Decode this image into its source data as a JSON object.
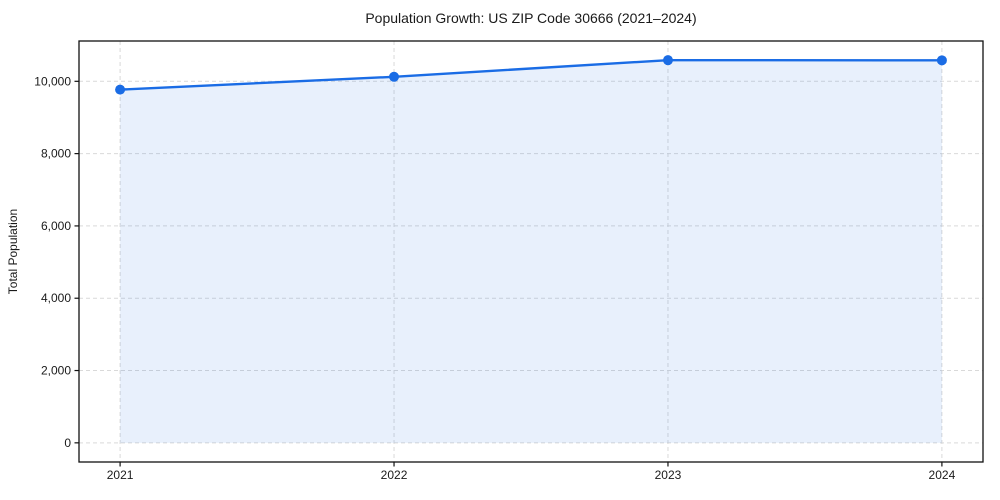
{
  "chart_data": {
    "type": "area",
    "title": "Population Growth: US ZIP Code 30666 (2021–2024)",
    "xlabel": "",
    "ylabel": "Total Population",
    "x": [
      2021,
      2022,
      2023,
      2024
    ],
    "series": [
      {
        "name": "Total Population",
        "values": [
          9770,
          10125,
          10585,
          10580
        ]
      }
    ],
    "fill_baseline": 0,
    "xticks": {
      "values": [
        2021,
        2022,
        2023,
        2024
      ],
      "labels": [
        "2021",
        "2022",
        "2023",
        "2024"
      ]
    },
    "yticks": {
      "values": [
        0,
        2000,
        4000,
        6000,
        8000,
        10000
      ],
      "labels": [
        "0",
        "2,000",
        "4,000",
        "6,000",
        "8,000",
        "10,000"
      ]
    },
    "xlim": [
      2020.85,
      2024.15
    ],
    "ylim": [
      -530,
      11115
    ],
    "grid": true,
    "grid_style": "dashed",
    "legend": false,
    "colors": {
      "line": "#1a6ce5",
      "marker": "#1a6ce5",
      "fill": "#1a6ce5",
      "fill_opacity": 0.1,
      "grid": "#d9d9d9",
      "spine": "#111111",
      "text": "#1a1a1a",
      "background": "#ffffff"
    }
  }
}
